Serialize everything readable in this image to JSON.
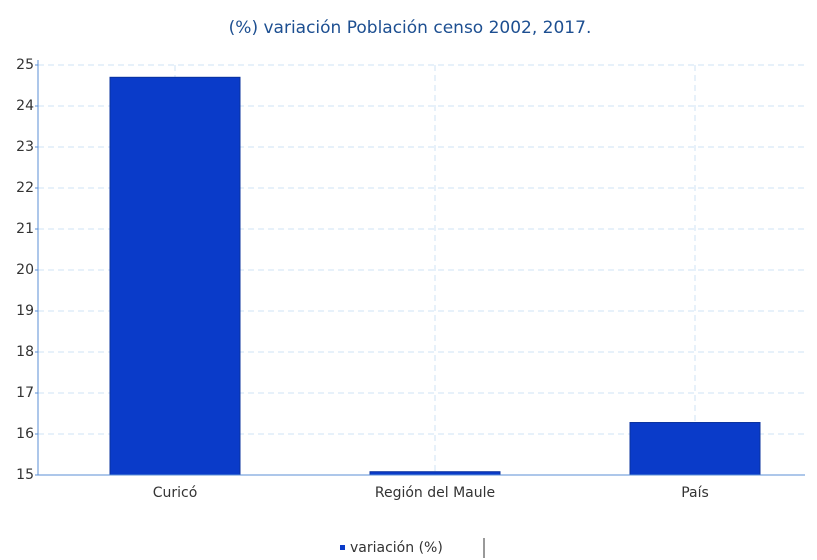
{
  "chart_data": {
    "type": "bar",
    "title": "(%) variación Población censo 2002, 2017.",
    "categories": [
      "Curicó",
      "Región del Maule",
      "País"
    ],
    "series": [
      {
        "name": "variación (%)",
        "color": "#0a3bc9",
        "values": [
          24.7,
          15.08,
          16.28
        ]
      }
    ],
    "ylim": [
      15,
      25
    ],
    "yticks": [
      15,
      16,
      17,
      18,
      19,
      20,
      21,
      22,
      23,
      24,
      25
    ],
    "grid": true,
    "legend": "bottom"
  }
}
